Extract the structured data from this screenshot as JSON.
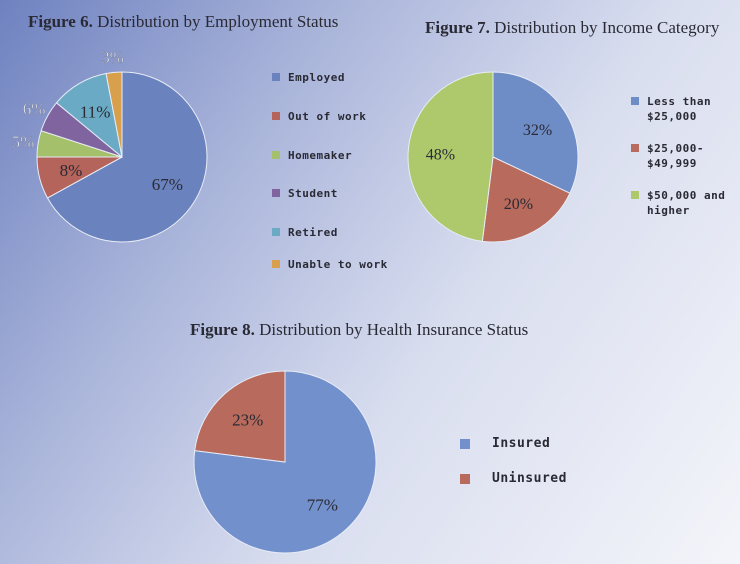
{
  "chart_data": [
    {
      "type": "pie",
      "title_bold": "Figure 6.",
      "title": "Distribution by Employment Status",
      "categories": [
        "Employed",
        "Out of work",
        "Homemaker",
        "Student",
        "Retired",
        "Unable to work"
      ],
      "values": [
        67,
        8,
        5,
        6,
        11,
        3
      ],
      "labels": [
        "67%",
        "8%",
        "5%",
        "6%",
        "11%",
        "3%"
      ],
      "colors": [
        "#6a82bd",
        "#b4645a",
        "#a4c06a",
        "#7f64a0",
        "#6aaac4",
        "#d8a04c"
      ],
      "legend": "right"
    },
    {
      "type": "pie",
      "title_bold": "Figure 7.",
      "title": "Distribution by Income Category",
      "categories": [
        "Less than $25,000",
        "$25,000-$49,999",
        "$50,000 and higher"
      ],
      "legend_lines": [
        [
          "Less than",
          "$25,000"
        ],
        [
          "$25,000-",
          "$49,999"
        ],
        [
          "$50,000 and",
          "higher"
        ]
      ],
      "values": [
        32,
        20,
        48
      ],
      "labels": [
        "32%",
        "20%",
        "48%"
      ],
      "colors": [
        "#6e8cc6",
        "#b86a5c",
        "#adc96c"
      ],
      "legend": "right"
    },
    {
      "type": "pie",
      "title_bold": "Figure 8.",
      "title": "Distribution by Health Insurance Status",
      "categories": [
        "Insured",
        "Uninsured"
      ],
      "values": [
        77,
        23
      ],
      "labels": [
        "77%",
        "23%"
      ],
      "colors": [
        "#7290cc",
        "#b86a5c"
      ],
      "legend": "right"
    }
  ]
}
